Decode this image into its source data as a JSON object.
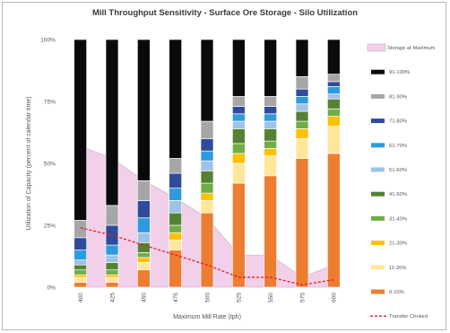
{
  "chart_data": {
    "type": "bar",
    "title": "Mill Throughput Sensitivity - Surface Ore Storage - Silo Utilization",
    "xlabel": "Maximum Mill Rate (tph)",
    "ylabel": "Utilization of Capacity (percent of calendar time)",
    "ylim": [
      0,
      100
    ],
    "yticks": [
      "0%",
      "25%",
      "50%",
      "75%",
      "100%"
    ],
    "grid": false,
    "legend_position": "right",
    "categories": [
      "400",
      "425",
      "450",
      "475",
      "500",
      "525",
      "550",
      "575",
      "600"
    ],
    "stacked": true,
    "series": [
      {
        "name": "0-10%",
        "color": "#ed7d31",
        "values": [
          2,
          2,
          7,
          15,
          30,
          42,
          45,
          52,
          54
        ]
      },
      {
        "name": "11-20%",
        "color": "#ffe699",
        "values": [
          2,
          2,
          3,
          4,
          5,
          8,
          8,
          8,
          11
        ]
      },
      {
        "name": "21-30%",
        "color": "#ffc000",
        "values": [
          1,
          1,
          2,
          3,
          3,
          4,
          3,
          4,
          4
        ]
      },
      {
        "name": "31-40%",
        "color": "#70ad47",
        "values": [
          2,
          2,
          2,
          3,
          4,
          4,
          3,
          3,
          3
        ]
      },
      {
        "name": "41-50%",
        "color": "#548235",
        "values": [
          2,
          3,
          4,
          5,
          5,
          6,
          5,
          4,
          4
        ]
      },
      {
        "name": "51-60%",
        "color": "#9dc3e6",
        "values": [
          2,
          3,
          4,
          5,
          4,
          3,
          3,
          3,
          2
        ]
      },
      {
        "name": "61-70%",
        "color": "#2e9be0",
        "values": [
          4,
          4,
          6,
          5,
          4,
          3,
          3,
          3,
          3
        ]
      },
      {
        "name": "71-80%",
        "color": "#2f4b9a",
        "values": [
          5,
          8,
          7,
          6,
          5,
          3,
          3,
          3,
          2
        ]
      },
      {
        "name": "81-90%",
        "color": "#a6a6a6",
        "values": [
          7,
          8,
          8,
          6,
          7,
          4,
          4,
          5,
          3
        ]
      },
      {
        "name": "91-100%",
        "color": "#0a0a0a",
        "values": [
          73,
          67,
          57,
          48,
          33,
          23,
          23,
          15,
          14
        ]
      }
    ],
    "area": {
      "name": "Storage at Maximum",
      "color": "#f2d0ea",
      "values": [
        57,
        52,
        43,
        36,
        28,
        13,
        13,
        4,
        9
      ]
    },
    "line": {
      "name": "Transfer Choked",
      "color": "#e02020",
      "values": [
        24,
        21,
        17,
        13,
        9,
        4,
        4,
        1,
        3
      ]
    }
  }
}
